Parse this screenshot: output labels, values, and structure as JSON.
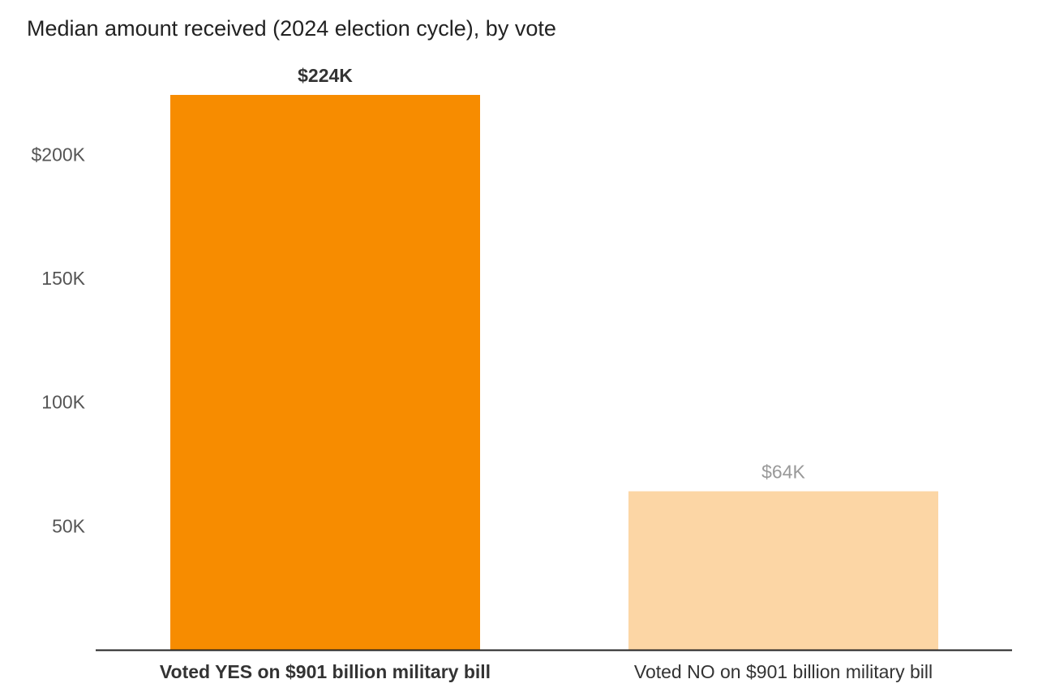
{
  "chart_data": {
    "type": "bar",
    "title": "Median amount received (2024 election cycle), by vote",
    "xlabel": "",
    "ylabel": "",
    "ylim": [
      0,
      224000
    ],
    "grid": false,
    "categories": [
      "Voted YES on $901 billion military bill",
      "Voted NO on $901 billion military bill"
    ],
    "values": [
      224000,
      64000
    ],
    "value_labels": [
      "$224K",
      "$64K"
    ],
    "yticks": [
      {
        "value": 50000,
        "label": "50K"
      },
      {
        "value": 100000,
        "label": "100K"
      },
      {
        "value": 150000,
        "label": "150K"
      },
      {
        "value": 200000,
        "label": "$200K"
      }
    ],
    "colors": {
      "highlight_bar": "#f78c00",
      "muted_bar": "#fcd6a5",
      "highlight_text": "#333333",
      "muted_text": "#999999",
      "muted_category_text": "#333333",
      "baseline": "#222222"
    },
    "highlighted_index": 0
  }
}
